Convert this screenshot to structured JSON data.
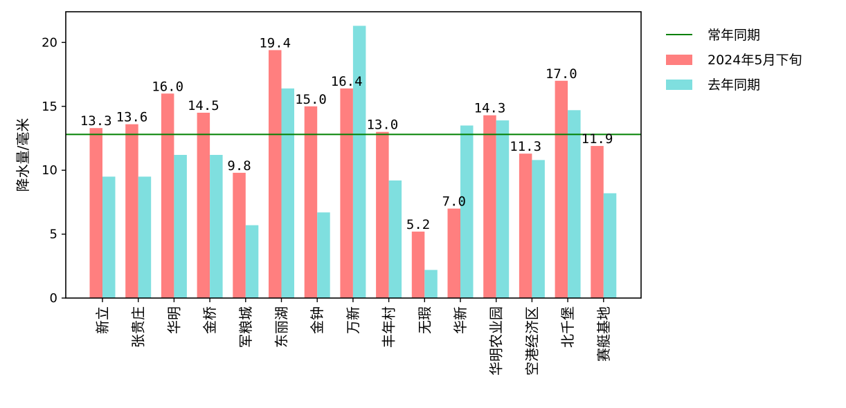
{
  "chart_data": {
    "type": "bar",
    "title": "",
    "xlabel": "",
    "ylabel": "降水量/毫米",
    "ylim": [
      0,
      22.4
    ],
    "yticks": [
      "0",
      "5",
      "10",
      "15",
      "20"
    ],
    "categories": [
      "新立",
      "张贵庄",
      "华明",
      "金桥",
      "军粮城",
      "东丽湖",
      "金钟",
      "万新",
      "丰年村",
      "无瑕",
      "华新",
      "华明农业园",
      "空港经济区",
      "北千堡",
      "赛艇基地"
    ],
    "series": [
      {
        "name": "2024年5月下旬",
        "color": "#ff7f7f",
        "values": [
          13.3,
          13.6,
          16.0,
          14.5,
          9.8,
          19.4,
          15.0,
          16.4,
          13.0,
          5.2,
          7.0,
          14.3,
          11.3,
          17.0,
          11.9
        ],
        "labels": [
          "13.3",
          "13.6",
          "16.0",
          "14.5",
          "9.8",
          "19.4",
          "15.0",
          "16.4",
          "13.0",
          "5.2",
          "7.0",
          "14.3",
          "11.3",
          "17.0",
          "11.9"
        ]
      },
      {
        "name": "去年同期",
        "color": "#7fdfdf",
        "values": [
          9.5,
          9.5,
          11.2,
          11.2,
          5.7,
          16.4,
          6.7,
          21.3,
          9.2,
          2.2,
          13.5,
          13.9,
          10.8,
          14.7,
          8.2
        ]
      }
    ],
    "reference_line": {
      "name": "常年同期",
      "value": 12.8,
      "color": "#008000"
    },
    "legend": {
      "position": "outside-right",
      "items": [
        {
          "label": "常年同期",
          "kind": "line",
          "color": "#008000"
        },
        {
          "label": "2024年5月下旬",
          "kind": "patch",
          "color": "#ff7f7f"
        },
        {
          "label": "去年同期",
          "kind": "patch",
          "color": "#7fdfdf"
        }
      ]
    },
    "grid": false
  }
}
